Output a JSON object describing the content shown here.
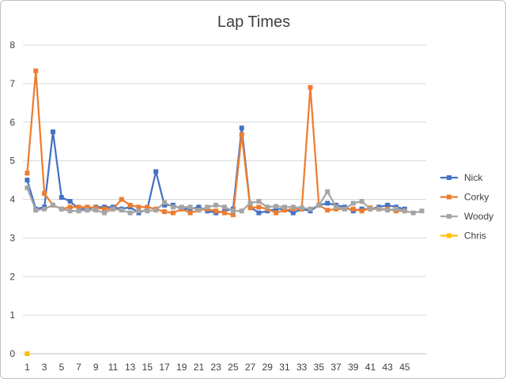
{
  "chart_data": {
    "type": "line",
    "title": "Lap Times",
    "ylim": [
      0,
      8
    ],
    "yticks": [
      "0",
      "1",
      "2",
      "3",
      "4",
      "5",
      "6",
      "7",
      "8"
    ],
    "x": [
      1,
      2,
      3,
      4,
      5,
      6,
      7,
      8,
      9,
      10,
      11,
      12,
      13,
      14,
      15,
      16,
      17,
      18,
      19,
      20,
      21,
      22,
      23,
      24,
      25,
      26,
      27,
      28,
      29,
      30,
      31,
      32,
      33,
      34,
      35,
      36,
      37,
      38,
      39,
      40,
      41,
      42,
      43,
      44,
      45,
      46,
      47
    ],
    "xtick_labels": [
      "1",
      "3",
      "5",
      "7",
      "9",
      "11",
      "13",
      "15",
      "17",
      "19",
      "21",
      "23",
      "25",
      "27",
      "29",
      "31",
      "33",
      "35",
      "37",
      "39",
      "41",
      "43",
      "45"
    ],
    "grid": "horizontal",
    "legend_position": "right",
    "series": [
      {
        "name": "Nick",
        "color": "#4472c4",
        "values": [
          4.5,
          3.75,
          3.8,
          5.75,
          4.05,
          3.95,
          3.75,
          3.75,
          3.8,
          3.8,
          3.8,
          3.75,
          3.8,
          3.65,
          3.75,
          4.72,
          3.85,
          3.85,
          3.75,
          3.75,
          3.8,
          3.7,
          3.65,
          3.7,
          3.75,
          5.85,
          3.8,
          3.65,
          3.7,
          3.75,
          3.75,
          3.65,
          3.75,
          3.7,
          3.85,
          3.9,
          3.85,
          3.8,
          3.7,
          3.75,
          3.75,
          3.8,
          3.85,
          3.8,
          3.75,
          null,
          null
        ]
      },
      {
        "name": "Corky",
        "color": "#ed7d31",
        "values": [
          4.68,
          7.33,
          4.15,
          3.85,
          3.75,
          3.8,
          3.8,
          3.8,
          3.78,
          3.75,
          3.75,
          4.0,
          3.85,
          3.8,
          3.8,
          3.75,
          3.68,
          3.65,
          3.75,
          3.65,
          3.72,
          3.75,
          3.7,
          3.65,
          3.6,
          5.68,
          3.78,
          3.8,
          3.75,
          3.65,
          3.72,
          3.75,
          3.75,
          6.9,
          3.85,
          3.72,
          3.75,
          3.75,
          3.75,
          3.7,
          3.78,
          3.75,
          3.75,
          3.7,
          3.7,
          null,
          null
        ]
      },
      {
        "name": "Woody",
        "color": "#a5a5a5",
        "values": [
          4.3,
          3.72,
          3.75,
          3.85,
          3.75,
          3.7,
          3.7,
          3.72,
          3.72,
          3.65,
          3.75,
          3.72,
          3.65,
          3.7,
          3.7,
          3.72,
          3.92,
          3.8,
          3.8,
          3.8,
          3.72,
          3.8,
          3.85,
          3.8,
          3.7,
          3.7,
          3.9,
          3.95,
          3.8,
          3.82,
          3.8,
          3.8,
          3.78,
          3.75,
          3.85,
          4.2,
          3.8,
          3.75,
          3.9,
          3.95,
          3.75,
          3.75,
          3.72,
          3.75,
          3.7,
          3.65,
          3.7
        ]
      },
      {
        "name": "Chris",
        "color": "#ffc000",
        "values": [
          0,
          null,
          null,
          null,
          null,
          null,
          null,
          null,
          null,
          null,
          null,
          null,
          null,
          null,
          null,
          null,
          null,
          null,
          null,
          null,
          null,
          null,
          null,
          null,
          null,
          null,
          null,
          null,
          null,
          null,
          null,
          null,
          null,
          null,
          null,
          null,
          null,
          null,
          null,
          null,
          null,
          null,
          null,
          null,
          null,
          null,
          null
        ]
      }
    ]
  }
}
